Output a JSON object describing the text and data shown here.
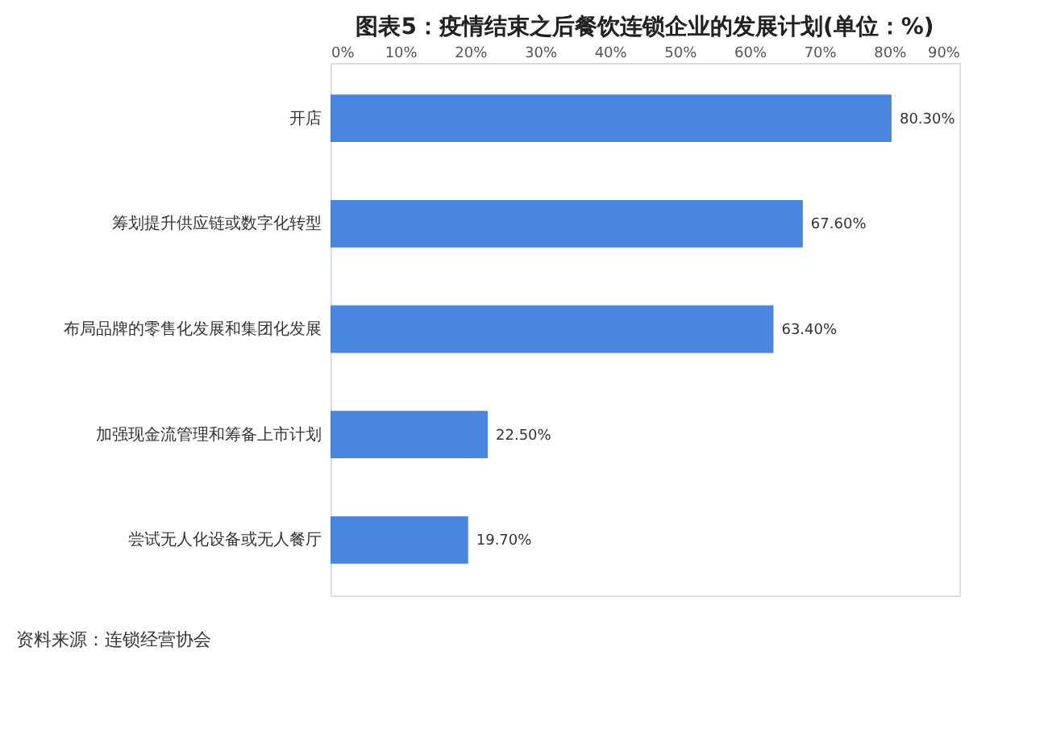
{
  "chart_data": {
    "type": "bar",
    "orientation": "horizontal",
    "title": "图表5：疫情结束之后餐饮连锁企业的发展计划(单位：%)",
    "categories": [
      "开店",
      "筹划提升供应链或数字化转型",
      "布局品牌的零售化发展和集团化发展",
      "加强现金流管理和筹备上市计划",
      "尝试无人化设备或无人餐厅"
    ],
    "values": [
      80.3,
      67.6,
      63.4,
      22.5,
      19.7
    ],
    "value_labels": [
      "80.30%",
      "67.60%",
      "63.40%",
      "22.50%",
      "19.70%"
    ],
    "color": "#4a86e0",
    "xlim": [
      0,
      90
    ],
    "xticks": [
      {
        "value": 0,
        "label": "0%"
      },
      {
        "value": 10,
        "label": "10%"
      },
      {
        "value": 20,
        "label": "20%"
      },
      {
        "value": 30,
        "label": "30%"
      },
      {
        "value": 40,
        "label": "40%"
      },
      {
        "value": 50,
        "label": "50%"
      },
      {
        "value": 60,
        "label": "60%"
      },
      {
        "value": 70,
        "label": "70%"
      },
      {
        "value": 80,
        "label": "80%"
      },
      {
        "value": 90,
        "label": "90%"
      }
    ],
    "grid": false,
    "annotations": [
      "资料来源：连锁经营协会"
    ]
  }
}
